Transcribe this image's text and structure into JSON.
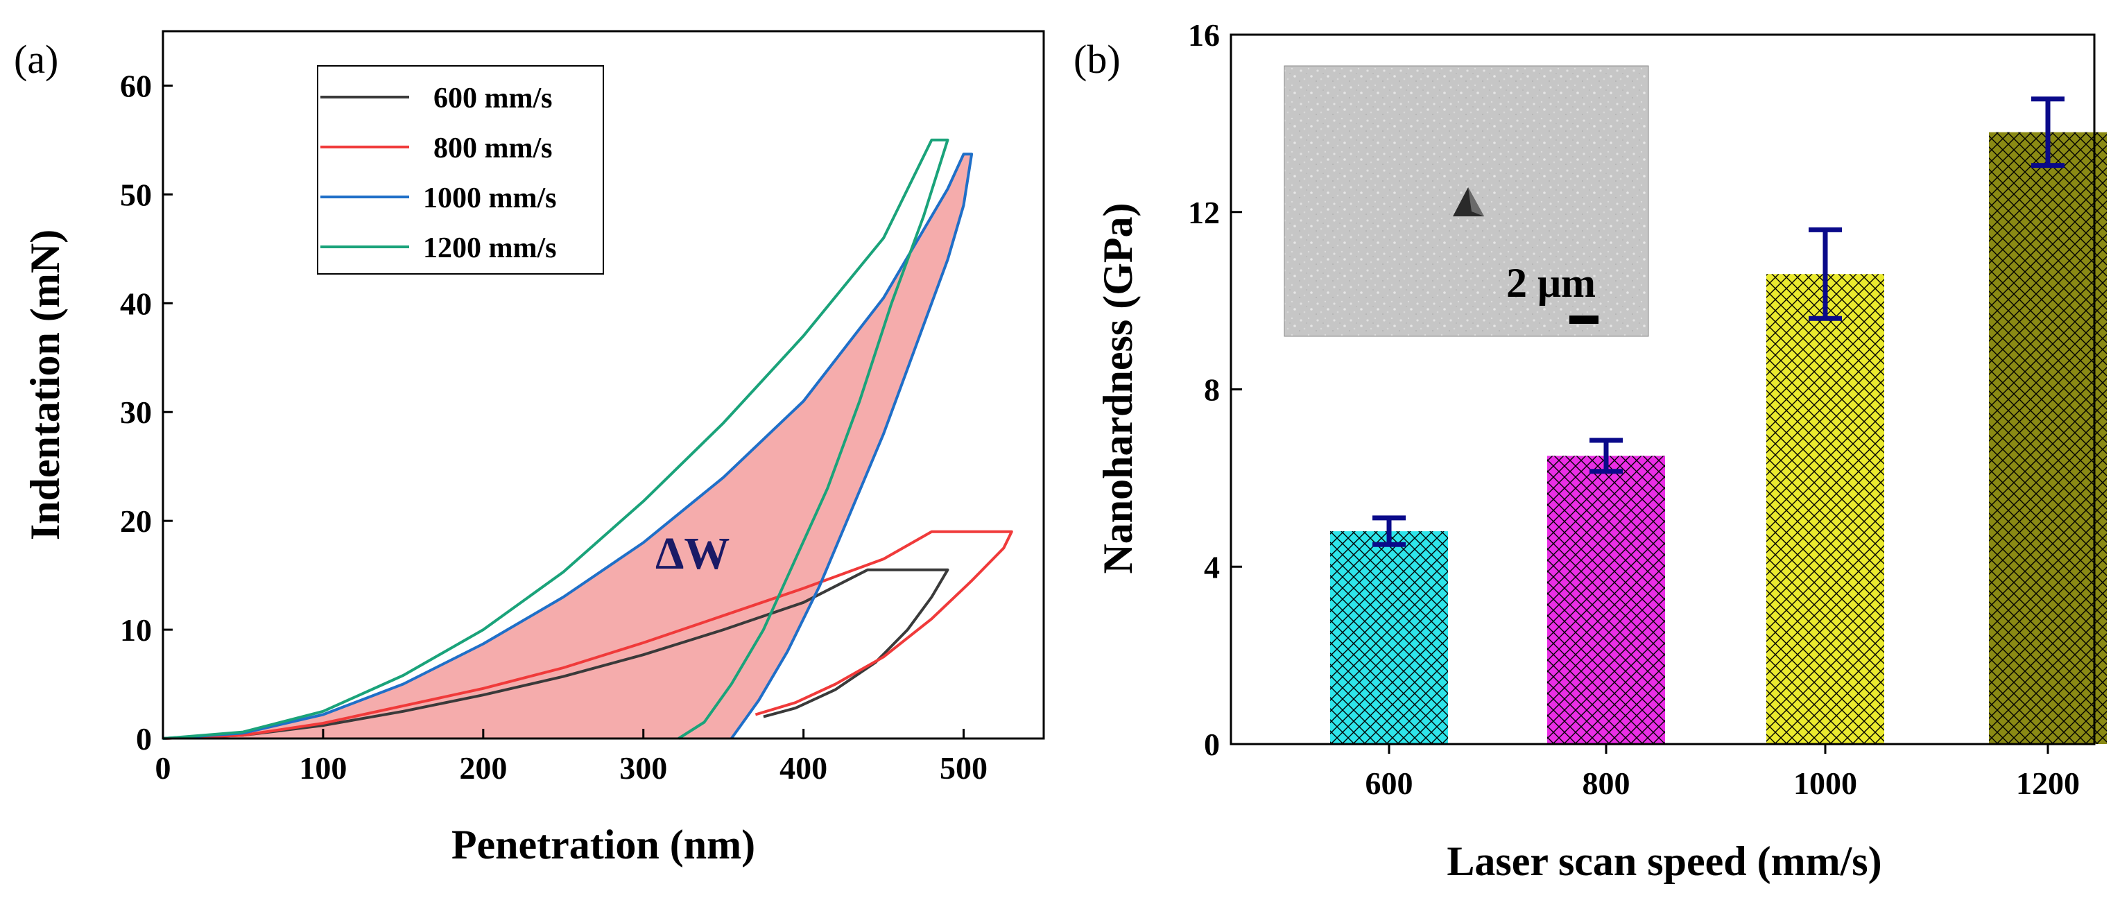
{
  "chart_data": [
    {
      "panel_label": "(a)",
      "type": "line",
      "xlabel": "Penetration (nm)",
      "ylabel": "Indentation (mN)",
      "xlim": [
        0,
        550
      ],
      "ylim": [
        0,
        65
      ],
      "xticks": [
        "0",
        "100",
        "200",
        "300",
        "400",
        "500"
      ],
      "yticks": [
        "0",
        "10",
        "20",
        "30",
        "40",
        "50",
        "60"
      ],
      "legend_position": "top-left",
      "annotation": "ΔW",
      "shaded_region_color": "#f4a3a3",
      "series": [
        {
          "name": "600 mm/s",
          "color": "#3a3a3a",
          "loading": [
            [
              0,
              0
            ],
            [
              50,
              0.3
            ],
            [
              100,
              1.2
            ],
            [
              150,
              2.5
            ],
            [
              200,
              4.0
            ],
            [
              250,
              5.7
            ],
            [
              300,
              7.7
            ],
            [
              350,
              10.0
            ],
            [
              400,
              12.5
            ],
            [
              440,
              15.5
            ]
          ],
          "hold": [
            [
              440,
              15.5
            ],
            [
              490,
              15.5
            ]
          ],
          "unloading": [
            [
              490,
              15.5
            ],
            [
              480,
              13.0
            ],
            [
              465,
              10.0
            ],
            [
              445,
              7.0
            ],
            [
              420,
              4.5
            ],
            [
              395,
              2.8
            ],
            [
              375,
              2.0
            ]
          ]
        },
        {
          "name": "800 mm/s",
          "color": "#f03a3a",
          "loading": [
            [
              0,
              0
            ],
            [
              50,
              0.3
            ],
            [
              100,
              1.4
            ],
            [
              150,
              3.0
            ],
            [
              200,
              4.6
            ],
            [
              250,
              6.5
            ],
            [
              300,
              8.8
            ],
            [
              350,
              11.3
            ],
            [
              400,
              13.8
            ],
            [
              450,
              16.5
            ],
            [
              480,
              19.0
            ]
          ],
          "hold": [
            [
              480,
              19.0
            ],
            [
              530,
              19.0
            ]
          ],
          "unloading": [
            [
              530,
              19.0
            ],
            [
              525,
              17.5
            ],
            [
              505,
              14.5
            ],
            [
              480,
              11.0
            ],
            [
              450,
              7.5
            ],
            [
              420,
              5.0
            ],
            [
              395,
              3.3
            ],
            [
              370,
              2.2
            ]
          ]
        },
        {
          "name": "1000 mm/s",
          "color": "#1f6fc8",
          "loading": [
            [
              0,
              0
            ],
            [
              50,
              0.5
            ],
            [
              100,
              2.2
            ],
            [
              150,
              5.0
            ],
            [
              200,
              8.7
            ],
            [
              250,
              13.0
            ],
            [
              300,
              18.0
            ],
            [
              350,
              24.0
            ],
            [
              400,
              31.0
            ],
            [
              450,
              40.5
            ],
            [
              490,
              50.5
            ],
            [
              500,
              53.7
            ]
          ],
          "hold": [
            [
              500,
              53.7
            ],
            [
              505,
              53.7
            ]
          ],
          "unloading": [
            [
              505,
              53.7
            ],
            [
              500,
              49.0
            ],
            [
              490,
              44.0
            ],
            [
              470,
              36.0
            ],
            [
              450,
              28.0
            ],
            [
              430,
              21.0
            ],
            [
              410,
              14.0
            ],
            [
              390,
              8.0
            ],
            [
              372,
              3.5
            ],
            [
              355,
              0
            ]
          ]
        },
        {
          "name": "1200 mm/s",
          "color": "#1aa37a",
          "loading": [
            [
              0,
              0
            ],
            [
              50,
              0.6
            ],
            [
              100,
              2.5
            ],
            [
              150,
              5.8
            ],
            [
              200,
              10.0
            ],
            [
              250,
              15.3
            ],
            [
              300,
              21.8
            ],
            [
              350,
              29.0
            ],
            [
              400,
              37.0
            ],
            [
              450,
              46.0
            ],
            [
              480,
              55.0
            ]
          ],
          "hold": [
            [
              480,
              55.0
            ],
            [
              490,
              55.0
            ]
          ],
          "unloading": [
            [
              490,
              55.0
            ],
            [
              475,
              48.0
            ],
            [
              455,
              40.0
            ],
            [
              435,
              31.0
            ],
            [
              415,
              23.0
            ],
            [
              395,
              16.5
            ],
            [
              375,
              10.0
            ],
            [
              355,
              5.0
            ],
            [
              338,
              1.5
            ],
            [
              322,
              0
            ]
          ]
        }
      ]
    },
    {
      "panel_label": "(b)",
      "type": "bar",
      "xlabel": "Laser scan speed (mm/s)",
      "ylabel": "Nanohardness (GPa)",
      "categories": [
        "600",
        "800",
        "1000",
        "1200"
      ],
      "values": [
        4.8,
        6.5,
        10.6,
        13.8
      ],
      "errors": [
        0.3,
        0.35,
        1.0,
        0.75
      ],
      "bar_colors": [
        "#2ee5ea",
        "#ea2ee5",
        "#eaea2e",
        "#8a8a14"
      ],
      "error_bar_color": "#0a0a8a",
      "ylim": [
        0,
        16
      ],
      "yticks": [
        "0",
        "4",
        "8",
        "12",
        "16"
      ],
      "inset_scale_label": "2 μm"
    }
  ]
}
